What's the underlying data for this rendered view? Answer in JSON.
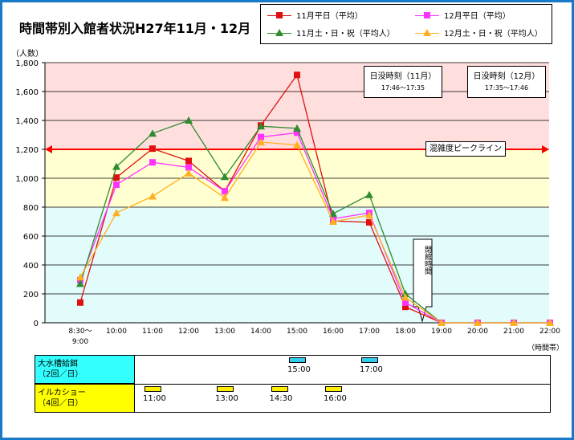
{
  "title": "時間帯別入館者状況H27年11月・12月",
  "legend": [
    {
      "label": "11月平日（平均）",
      "color": "#e01010",
      "marker": "square"
    },
    {
      "label": "12月平日（平均）",
      "color": "#ff33ff",
      "marker": "square"
    },
    {
      "label": "11月土・日・祝（平均人）",
      "color": "#2e8b2e",
      "marker": "triangle"
    },
    {
      "label": "12月土・日・祝（平均人）",
      "color": "#ffb020",
      "marker": "triangle"
    }
  ],
  "notes": {
    "sunset_nov_title": "日没時刻（11月）",
    "sunset_nov_time": "17:46〜17:35",
    "sunset_dec_title": "日没時刻（12月）",
    "sunset_dec_time": "17:35〜17:46",
    "peak_line_label": "混雑度ピークライン",
    "closing_label": "閉館時間"
  },
  "chart_data": {
    "type": "line",
    "title": "時間帯別入館者状況H27年11月・12月",
    "ylabel": "（人数）",
    "xlabel": "（時間帯）",
    "ylim": [
      0,
      1800
    ],
    "yticks": [
      "0",
      "200",
      "400",
      "600",
      "800",
      "1,000",
      "1,200",
      "1,400",
      "1,600",
      "1,800"
    ],
    "categories": [
      "8:30〜\n9:00",
      "10:00",
      "11:00",
      "12:00",
      "13:00",
      "14:00",
      "15:00",
      "16:00",
      "17:00",
      "18:00",
      "19:00",
      "20:00",
      "21:00",
      "22:00"
    ],
    "series": [
      {
        "name": "11月平日（平均）",
        "color": "#e01010",
        "marker": "square",
        "values": [
          140,
          1005,
          1205,
          1120,
          910,
          1365,
          1715,
          705,
          695,
          110,
          0,
          0,
          0,
          0
        ]
      },
      {
        "name": "12月平日（平均）",
        "color": "#ff33ff",
        "marker": "square",
        "values": [
          295,
          955,
          1110,
          1075,
          910,
          1285,
          1315,
          720,
          760,
          140,
          0,
          0,
          0,
          0
        ]
      },
      {
        "name": "11月土・日・祝（平均人）",
        "color": "#2e8b2e",
        "marker": "triangle",
        "values": [
          270,
          1080,
          1310,
          1400,
          1010,
          1360,
          1345,
          755,
          885,
          200,
          0,
          0,
          0,
          0
        ]
      },
      {
        "name": "12月土・日・祝（平均人）",
        "color": "#ffb020",
        "marker": "triangle",
        "values": [
          315,
          760,
          875,
          1035,
          865,
          1250,
          1230,
          700,
          745,
          175,
          0,
          0,
          0,
          0
        ]
      }
    ],
    "bands": [
      {
        "from": 1200,
        "to": 1800,
        "color": "#ffdede"
      },
      {
        "from": 800,
        "to": 1200,
        "color": "#ffffd2"
      },
      {
        "from": 0,
        "to": 800,
        "color": "#e2fbfb"
      }
    ],
    "peak_line": 1200,
    "peak_color": "#ff0000"
  },
  "schedule": {
    "row1_label": "大水槽給餌\n（2回／日）",
    "row1_color": "#33ccee",
    "row1_slots": [
      {
        "time": "15:00",
        "hour": 15
      },
      {
        "time": "17:00",
        "hour": 17
      }
    ],
    "row2_label": "イルカショー\n（4回／日）",
    "row2_color": "#ffee00",
    "row2_slots": [
      {
        "time": "11:00",
        "hour": 11
      },
      {
        "time": "13:00",
        "hour": 13
      },
      {
        "time": "14:30",
        "hour": 14.5
      },
      {
        "time": "16:00",
        "hour": 16
      }
    ]
  }
}
